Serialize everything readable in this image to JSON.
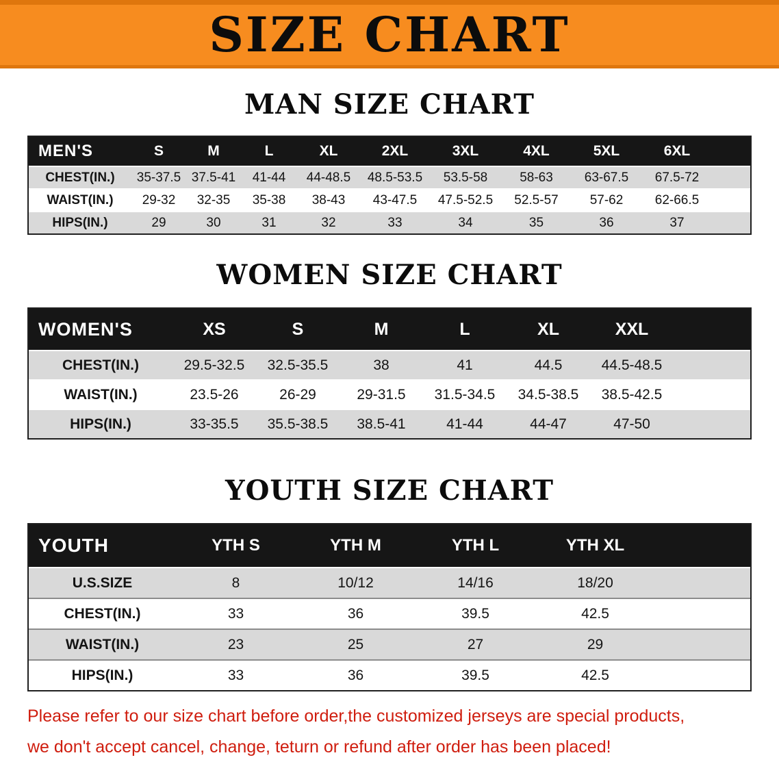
{
  "banner": {
    "title": "SIZE CHART"
  },
  "sections": {
    "men": {
      "heading": "MAN SIZE CHART",
      "corner": "MEN'S",
      "columns": [
        "S",
        "M",
        "L",
        "XL",
        "2XL",
        "3XL",
        "4XL",
        "5XL",
        "6XL"
      ],
      "rows": [
        {
          "label": "CHEST(IN.)",
          "values": [
            "35-37.5",
            "37.5-41",
            "41-44",
            "44-48.5",
            "48.5-53.5",
            "53.5-58",
            "58-63",
            "63-67.5",
            "67.5-72"
          ]
        },
        {
          "label": "WAIST(IN.)",
          "values": [
            "29-32",
            "32-35",
            "35-38",
            "38-43",
            "43-47.5",
            "47.5-52.5",
            "52.5-57",
            "57-62",
            "62-66.5"
          ]
        },
        {
          "label": "HIPS(IN.)",
          "values": [
            "29",
            "30",
            "31",
            "32",
            "33",
            "34",
            "35",
            "36",
            "37"
          ]
        }
      ]
    },
    "women": {
      "heading": "WOMEN SIZE CHART",
      "corner": "WOMEN'S",
      "columns": [
        "XS",
        "S",
        "M",
        "L",
        "XL",
        "XXL"
      ],
      "rows": [
        {
          "label": "CHEST(IN.)",
          "values": [
            "29.5-32.5",
            "32.5-35.5",
            "38",
            "41",
            "44.5",
            "44.5-48.5"
          ]
        },
        {
          "label": "WAIST(IN.)",
          "values": [
            "23.5-26",
            "26-29",
            "29-31.5",
            "31.5-34.5",
            "34.5-38.5",
            "38.5-42.5"
          ]
        },
        {
          "label": "HIPS(IN.)",
          "values": [
            "33-35.5",
            "35.5-38.5",
            "38.5-41",
            "41-44",
            "44-47",
            "47-50"
          ]
        }
      ]
    },
    "youth": {
      "heading": "YOUTH SIZE CHART",
      "corner": "YOUTH",
      "columns": [
        "YTH S",
        "YTH M",
        "YTH L",
        "YTH XL"
      ],
      "rows": [
        {
          "label": "U.S.SIZE",
          "values": [
            "8",
            "10/12",
            "14/16",
            "18/20"
          ]
        },
        {
          "label": "CHEST(IN.)",
          "values": [
            "33",
            "36",
            "39.5",
            "42.5"
          ]
        },
        {
          "label": "WAIST(IN.)",
          "values": [
            "23",
            "25",
            "27",
            "29"
          ]
        },
        {
          "label": "HIPS(IN.)",
          "values": [
            "33",
            "36",
            "39.5",
            "42.5"
          ]
        }
      ]
    }
  },
  "footer": {
    "line1": "Please refer to our size chart before order,the customized jerseys are special products,",
    "line2": "we don't accept cancel, change, teturn or refund after order has been placed!"
  },
  "colors": {
    "banner_orange": "#f78c1f",
    "banner_edge": "#df760d",
    "header_black": "#161616",
    "row_gray": "#d9d9d9",
    "row_white": "#ffffff",
    "footer_red": "#cf1d0e"
  }
}
